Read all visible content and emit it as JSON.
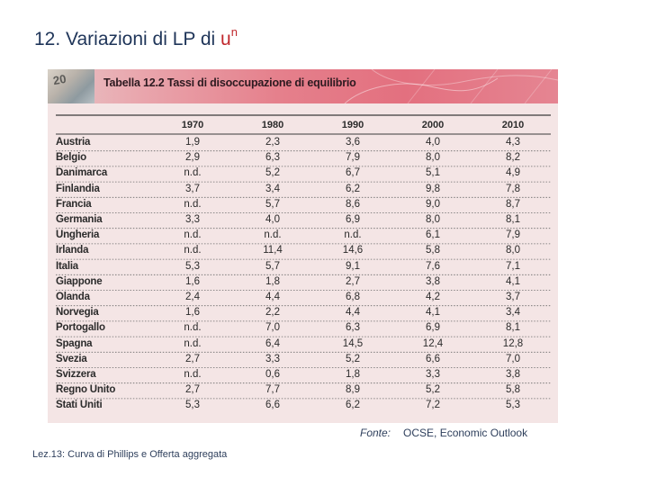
{
  "title": {
    "text": "12. Variazioni di LP di ",
    "u": "u",
    "sup": "n"
  },
  "figure": {
    "banner_title": "Tabella 12.2 Tassi di disoccupazione di equilibrio",
    "banner_number": "20",
    "years": [
      "1970",
      "1980",
      "1990",
      "2000",
      "2010"
    ],
    "rows": [
      {
        "country": "Austria",
        "values": [
          "1,9",
          "2,3",
          "3,6",
          "4,0",
          "4,3"
        ]
      },
      {
        "country": "Belgio",
        "values": [
          "2,9",
          "6,3",
          "7,9",
          "8,0",
          "8,2"
        ]
      },
      {
        "country": "Danimarca",
        "values": [
          "n.d.",
          "5,2",
          "6,7",
          "5,1",
          "4,9"
        ]
      },
      {
        "country": "Finlandia",
        "values": [
          "3,7",
          "3,4",
          "6,2",
          "9,8",
          "7,8"
        ]
      },
      {
        "country": "Francia",
        "values": [
          "n.d.",
          "5,7",
          "8,6",
          "9,0",
          "8,7"
        ]
      },
      {
        "country": "Germania",
        "values": [
          "3,3",
          "4,0",
          "6,9",
          "8,0",
          "8,1"
        ]
      },
      {
        "country": "Ungheria",
        "values": [
          "n.d.",
          "n.d.",
          "n.d.",
          "6,1",
          "7,9"
        ]
      },
      {
        "country": "Irlanda",
        "values": [
          "n.d.",
          "11,4",
          "14,6",
          "5,8",
          "8,0"
        ]
      },
      {
        "country": "Italia",
        "values": [
          "5,3",
          "5,7",
          "9,1",
          "7,6",
          "7,1"
        ]
      },
      {
        "country": "Giappone",
        "values": [
          "1,6",
          "1,8",
          "2,7",
          "3,8",
          "4,1"
        ]
      },
      {
        "country": "Olanda",
        "values": [
          "2,4",
          "4,4",
          "6,8",
          "4,2",
          "3,7"
        ]
      },
      {
        "country": "Norvegia",
        "values": [
          "1,6",
          "2,2",
          "4,4",
          "4,1",
          "3,4"
        ]
      },
      {
        "country": "Portogallo",
        "values": [
          "n.d.",
          "7,0",
          "6,3",
          "6,9",
          "8,1"
        ]
      },
      {
        "country": "Spagna",
        "values": [
          "n.d.",
          "6,4",
          "14,5",
          "12,4",
          "12,8"
        ]
      },
      {
        "country": "Svezia",
        "values": [
          "2,7",
          "3,3",
          "5,2",
          "6,6",
          "7,0"
        ]
      },
      {
        "country": "Svizzera",
        "values": [
          "n.d.",
          "0,6",
          "1,8",
          "3,3",
          "3,8"
        ]
      },
      {
        "country": "Regno Unito",
        "values": [
          "2,7",
          "7,7",
          "8,9",
          "5,2",
          "5,8"
        ]
      },
      {
        "country": "Stati Uniti",
        "values": [
          "5,3",
          "6,6",
          "6,2",
          "7,2",
          "5,3"
        ]
      }
    ]
  },
  "source": {
    "label": "Fonte:",
    "text": "OCSE, Economic Outlook"
  },
  "footer": "Lez.13:  Curva di Phillips e Offerta aggregata",
  "colors": {
    "title": "#1f3559",
    "accent": "#c0282d",
    "banner": "#e3707f",
    "figure_bg": "#f4e5e5"
  }
}
